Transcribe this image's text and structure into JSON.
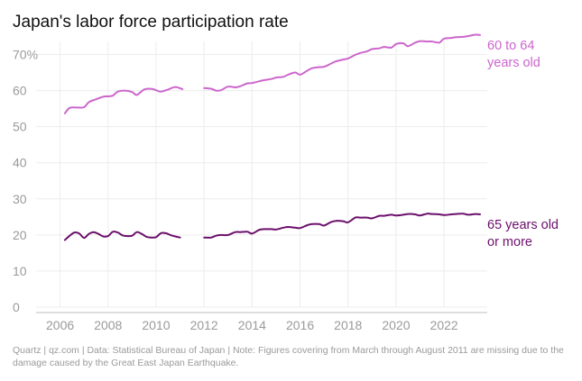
{
  "chart_data": {
    "type": "line",
    "title": "Japan's labor force participation rate",
    "y_unit_suffix": "%",
    "ylim": [
      0,
      75
    ],
    "xlim": [
      2005.0,
      2023.8
    ],
    "y_ticks": [
      0,
      10,
      20,
      30,
      40,
      50,
      60,
      70
    ],
    "x_ticks": [
      2006,
      2008,
      2010,
      2012,
      2014,
      2016,
      2018,
      2020,
      2022
    ],
    "gap": {
      "from": 2011.1,
      "to": 2012.0,
      "note": "March through August 2011 missing"
    },
    "series": [
      {
        "name": "60 to 64 years old",
        "label_lines": [
          "60 to 64",
          "years old"
        ],
        "color": "#cc66cc",
        "points": [
          [
            2006.2,
            53.7
          ],
          [
            2006.4,
            55.2
          ],
          [
            2006.7,
            55.3
          ],
          [
            2007.0,
            55.4
          ],
          [
            2007.2,
            56.8
          ],
          [
            2007.5,
            57.6
          ],
          [
            2007.8,
            58.3
          ],
          [
            2008.0,
            58.4
          ],
          [
            2008.2,
            58.6
          ],
          [
            2008.4,
            59.7
          ],
          [
            2008.7,
            60.0
          ],
          [
            2009.0,
            59.6
          ],
          [
            2009.2,
            58.8
          ],
          [
            2009.5,
            60.3
          ],
          [
            2009.8,
            60.5
          ],
          [
            2010.0,
            60.1
          ],
          [
            2010.2,
            59.7
          ],
          [
            2010.5,
            60.3
          ],
          [
            2010.8,
            61.0
          ],
          [
            2011.1,
            60.4
          ],
          [
            2012.0,
            60.7
          ],
          [
            2012.3,
            60.5
          ],
          [
            2012.5,
            60.0
          ],
          [
            2012.7,
            60.1
          ],
          [
            2013.0,
            61.1
          ],
          [
            2013.3,
            60.9
          ],
          [
            2013.5,
            61.2
          ],
          [
            2013.8,
            62.0
          ],
          [
            2014.0,
            62.1
          ],
          [
            2014.3,
            62.6
          ],
          [
            2014.5,
            62.9
          ],
          [
            2014.8,
            63.2
          ],
          [
            2015.0,
            63.6
          ],
          [
            2015.3,
            63.8
          ],
          [
            2015.5,
            64.4
          ],
          [
            2015.8,
            65.0
          ],
          [
            2016.0,
            64.4
          ],
          [
            2016.3,
            65.5
          ],
          [
            2016.5,
            66.2
          ],
          [
            2016.8,
            66.5
          ],
          [
            2017.0,
            66.6
          ],
          [
            2017.3,
            67.5
          ],
          [
            2017.5,
            68.1
          ],
          [
            2017.8,
            68.6
          ],
          [
            2018.0,
            68.9
          ],
          [
            2018.3,
            69.9
          ],
          [
            2018.5,
            70.4
          ],
          [
            2018.8,
            70.9
          ],
          [
            2019.0,
            71.5
          ],
          [
            2019.3,
            71.7
          ],
          [
            2019.5,
            72.1
          ],
          [
            2019.8,
            71.9
          ],
          [
            2020.0,
            72.9
          ],
          [
            2020.3,
            73.1
          ],
          [
            2020.5,
            72.3
          ],
          [
            2020.8,
            73.3
          ],
          [
            2021.0,
            73.7
          ],
          [
            2021.3,
            73.6
          ],
          [
            2021.5,
            73.6
          ],
          [
            2021.8,
            73.3
          ],
          [
            2022.0,
            74.4
          ],
          [
            2022.3,
            74.6
          ],
          [
            2022.5,
            74.8
          ],
          [
            2022.8,
            74.9
          ],
          [
            2023.0,
            75.1
          ],
          [
            2023.3,
            75.5
          ],
          [
            2023.5,
            75.4
          ]
        ]
      },
      {
        "name": "65 years old or more",
        "label_lines": [
          "65 years old",
          "or more"
        ],
        "color": "#6b0f6b",
        "points": [
          [
            2006.2,
            18.6
          ],
          [
            2006.4,
            19.8
          ],
          [
            2006.6,
            20.7
          ],
          [
            2006.8,
            20.4
          ],
          [
            2007.0,
            19.2
          ],
          [
            2007.2,
            20.3
          ],
          [
            2007.4,
            20.8
          ],
          [
            2007.6,
            20.3
          ],
          [
            2007.8,
            19.6
          ],
          [
            2008.0,
            19.7
          ],
          [
            2008.2,
            20.9
          ],
          [
            2008.4,
            20.7
          ],
          [
            2008.6,
            19.9
          ],
          [
            2008.8,
            19.7
          ],
          [
            2009.0,
            19.8
          ],
          [
            2009.2,
            20.8
          ],
          [
            2009.4,
            20.3
          ],
          [
            2009.6,
            19.5
          ],
          [
            2009.8,
            19.3
          ],
          [
            2010.0,
            19.4
          ],
          [
            2010.2,
            20.5
          ],
          [
            2010.4,
            20.5
          ],
          [
            2010.6,
            20.0
          ],
          [
            2010.8,
            19.6
          ],
          [
            2011.0,
            19.3
          ],
          [
            2012.0,
            19.3
          ],
          [
            2012.3,
            19.3
          ],
          [
            2012.5,
            19.8
          ],
          [
            2012.7,
            20.0
          ],
          [
            2013.0,
            20.0
          ],
          [
            2013.3,
            20.8
          ],
          [
            2013.5,
            20.8
          ],
          [
            2013.8,
            20.9
          ],
          [
            2014.0,
            20.4
          ],
          [
            2014.3,
            21.4
          ],
          [
            2014.5,
            21.6
          ],
          [
            2014.8,
            21.6
          ],
          [
            2015.0,
            21.5
          ],
          [
            2015.3,
            22.0
          ],
          [
            2015.5,
            22.2
          ],
          [
            2015.8,
            22.0
          ],
          [
            2016.0,
            21.9
          ],
          [
            2016.3,
            22.7
          ],
          [
            2016.5,
            23.0
          ],
          [
            2016.8,
            23.0
          ],
          [
            2017.0,
            22.6
          ],
          [
            2017.3,
            23.6
          ],
          [
            2017.5,
            23.9
          ],
          [
            2017.8,
            23.8
          ],
          [
            2018.0,
            23.5
          ],
          [
            2018.3,
            24.8
          ],
          [
            2018.5,
            24.8
          ],
          [
            2018.8,
            24.8
          ],
          [
            2019.0,
            24.6
          ],
          [
            2019.3,
            25.3
          ],
          [
            2019.5,
            25.3
          ],
          [
            2019.8,
            25.6
          ],
          [
            2020.0,
            25.4
          ],
          [
            2020.3,
            25.6
          ],
          [
            2020.5,
            25.8
          ],
          [
            2020.8,
            25.7
          ],
          [
            2021.0,
            25.4
          ],
          [
            2021.3,
            25.9
          ],
          [
            2021.5,
            25.8
          ],
          [
            2021.8,
            25.7
          ],
          [
            2022.0,
            25.5
          ],
          [
            2022.3,
            25.7
          ],
          [
            2022.5,
            25.8
          ],
          [
            2022.8,
            25.9
          ],
          [
            2023.0,
            25.6
          ],
          [
            2023.3,
            25.8
          ],
          [
            2023.5,
            25.7
          ]
        ]
      }
    ]
  },
  "footer": {
    "text": "Quartz | qz.com | Data: Statistical Bureau of Japan | Note: Figures covering from March through August 2011 are missing due to the damage caused by the Great East Japan Earthquake."
  }
}
